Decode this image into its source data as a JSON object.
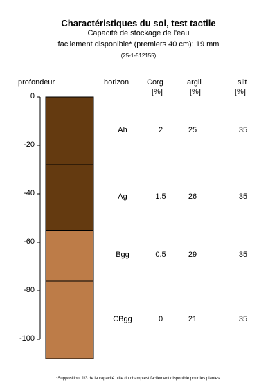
{
  "title": "Charactéristiques du sol, test tactile",
  "subtitle_line1": "Capacité de stockage de l'eau",
  "subtitle_line2": "facilement disponible* (premiers 40 cm): 19 mm",
  "sample_id": "(25-1-512155)",
  "headers": {
    "depth": "profondeur",
    "horizon": "horizon",
    "corg": "Corg",
    "corg_unit": "[%]",
    "clay": "argil",
    "clay_unit": "[%]",
    "silt": "silt",
    "silt_unit": "[%]"
  },
  "footnote": "*Supposition: 1/3 de la capacité utile du champ est facilement disponible pour les plantes.",
  "chart_data": {
    "type": "table",
    "ylabel": "profondeur",
    "ylim": [
      -108,
      0
    ],
    "yticks": [
      0,
      -20,
      -40,
      -60,
      -80,
      -100
    ],
    "ytick_labels": [
      "0",
      "-20",
      "-40",
      "-60",
      "-80",
      "-100"
    ],
    "layers": [
      {
        "horizon": "Ah",
        "top": 0,
        "bottom": -28,
        "corg": "2",
        "clay": "25",
        "silt": "35",
        "color": "#643a10"
      },
      {
        "horizon": "Ag",
        "top": -28,
        "bottom": -55,
        "corg": "1.5",
        "clay": "26",
        "silt": "35",
        "color": "#643a10"
      },
      {
        "horizon": "Bgg",
        "top": -55,
        "bottom": -76,
        "corg": "0.5",
        "clay": "29",
        "silt": "35",
        "color": "#bd7c48"
      },
      {
        "horizon": "CBgg",
        "top": -76,
        "bottom": -108,
        "corg": "0",
        "clay": "21",
        "silt": "35",
        "color": "#bd7c48"
      }
    ]
  }
}
